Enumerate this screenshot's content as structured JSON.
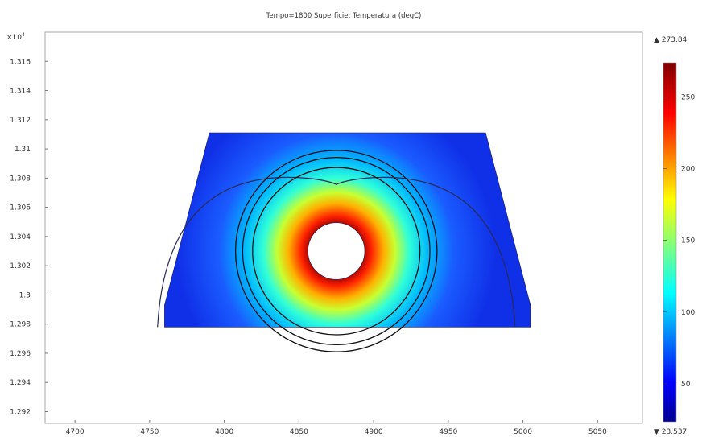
{
  "chart_data": {
    "type": "heatmap",
    "title": "Tempo=1800   Superficie: Temperatura (degC)",
    "y_multiplier": "×10",
    "y_multiplier_exp": "4",
    "x_ticks": [
      4700,
      4750,
      4800,
      4850,
      4900,
      4950,
      5000,
      5050
    ],
    "y_ticks": [
      1.292,
      1.294,
      1.296,
      1.298,
      1.3,
      1.302,
      1.304,
      1.306,
      1.308,
      1.31,
      1.312,
      1.314,
      1.316
    ],
    "y_tick_labels": [
      "1.292",
      "1.294",
      "1.296",
      "1.298",
      "1.3",
      "1.302",
      "1.304",
      "1.306",
      "1.308",
      "1.31",
      "1.312",
      "1.314",
      "1.316"
    ],
    "xlim": [
      4680,
      5080
    ],
    "ylim": [
      1.2912,
      1.318
    ],
    "domain": {
      "trapezoid": [
        [
          4790,
          1.3111
        ],
        [
          4975,
          1.3111
        ],
        [
          5005,
          1.2993
        ],
        [
          5005,
          1.2978
        ],
        [
          4760,
          1.2978
        ],
        [
          4760,
          1.2993
        ]
      ],
      "hole_center": [
        4875,
        1.303
      ],
      "hole_radius": 19
    },
    "colorbar": {
      "colormap": "jet",
      "min": 23.537,
      "max": 273.84,
      "max_label": "▲ 273.84",
      "min_label": "▼ 23.537",
      "ticks": [
        50,
        100,
        150,
        200,
        250
      ]
    }
  }
}
